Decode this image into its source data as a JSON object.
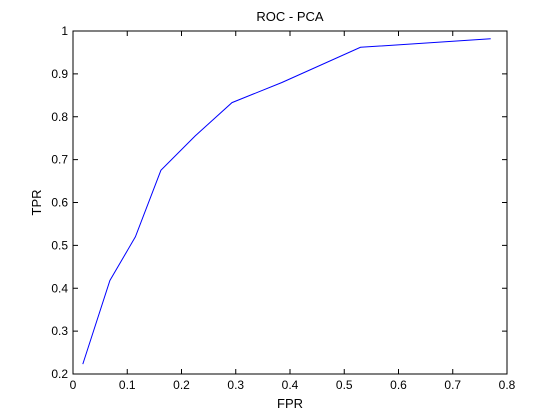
{
  "chart_data": {
    "type": "line",
    "title": "ROC - PCA",
    "xlabel": "FPR",
    "ylabel": "TPR",
    "xlim": [
      0,
      0.8
    ],
    "ylim": [
      0.2,
      1
    ],
    "x_ticks": [
      "0",
      "0.1",
      "0.2",
      "0.3",
      "0.4",
      "0.5",
      "0.6",
      "0.7",
      "0.8"
    ],
    "y_ticks": [
      "0.2",
      "0.3",
      "0.4",
      "0.5",
      "0.6",
      "0.7",
      "0.8",
      "0.9",
      "1"
    ],
    "grid": false,
    "line_color": "#0000ff",
    "series": [
      {
        "x": [
          0.018,
          0.068,
          0.115,
          0.162,
          0.225,
          0.293,
          0.385,
          0.53,
          0.77
        ],
        "y": [
          0.223,
          0.418,
          0.52,
          0.675,
          0.755,
          0.833,
          0.88,
          0.962,
          0.982
        ]
      }
    ]
  }
}
